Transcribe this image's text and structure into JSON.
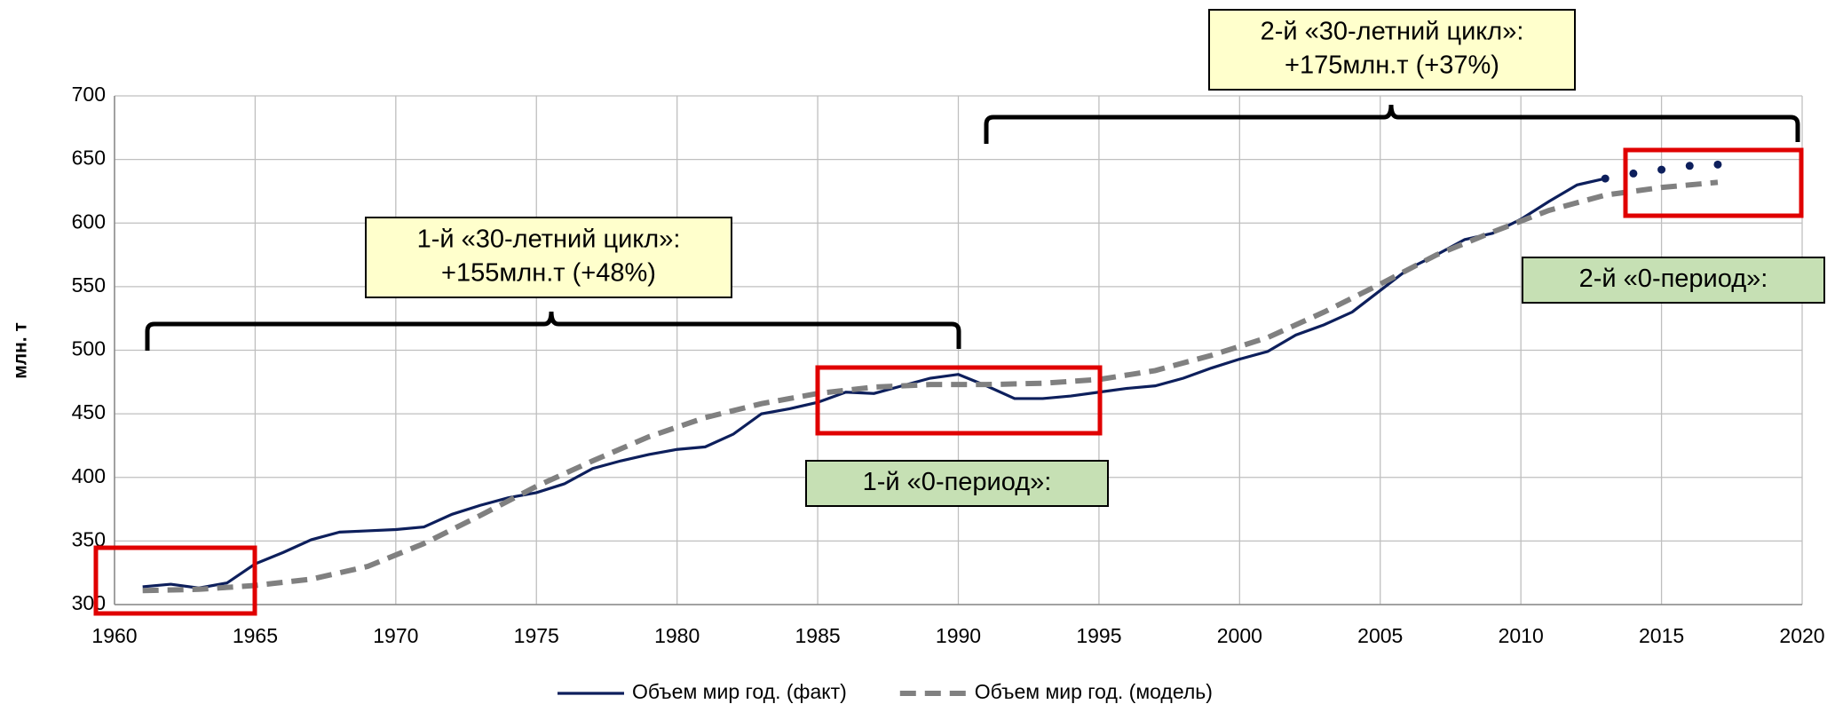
{
  "chart_data": {
    "type": "line",
    "ylabel": "млн. т",
    "xlim": [
      1960,
      2020
    ],
    "xticks": [
      1960,
      1965,
      1970,
      1975,
      1980,
      1985,
      1990,
      1995,
      2000,
      2005,
      2010,
      2015,
      2020
    ],
    "ylim": [
      300,
      700
    ],
    "yticks": [
      300,
      350,
      400,
      450,
      500,
      550,
      600,
      650,
      700
    ],
    "grid": true,
    "legend": "bottom",
    "series": [
      {
        "name": "Объем мир год. (факт)",
        "color": "#0d1f5c",
        "style": "solid",
        "x": [
          1961,
          1962,
          1963,
          1964,
          1965,
          1966,
          1967,
          1968,
          1969,
          1970,
          1971,
          1972,
          1973,
          1974,
          1975,
          1976,
          1977,
          1978,
          1979,
          1980,
          1981,
          1982,
          1983,
          1984,
          1985,
          1986,
          1987,
          1988,
          1989,
          1990,
          1991,
          1992,
          1993,
          1994,
          1995,
          1996,
          1997,
          1998,
          1999,
          2000,
          2001,
          2002,
          2003,
          2004,
          2005,
          2006,
          2007,
          2008,
          2009,
          2010,
          2011,
          2012,
          2013
        ],
        "values": [
          314,
          316,
          313,
          317,
          332,
          341,
          351,
          357,
          358,
          359,
          361,
          371,
          378,
          384,
          388,
          395,
          407,
          413,
          418,
          422,
          424,
          434,
          450,
          454,
          459,
          467,
          466,
          472,
          478,
          481,
          472,
          462,
          462,
          464,
          467,
          470,
          472,
          478,
          486,
          493,
          499,
          512,
          520,
          530,
          547,
          564,
          575,
          587,
          592,
          603,
          617,
          630,
          635
        ]
      },
      {
        "name": "Объем мир год. (модель)",
        "color": "#808080",
        "style": "dashed",
        "x": [
          1961,
          1963,
          1965,
          1967,
          1969,
          1971,
          1973,
          1975,
          1977,
          1979,
          1981,
          1983,
          1985,
          1987,
          1989,
          1991,
          1993,
          1995,
          1997,
          1999,
          2001,
          2003,
          2005,
          2007,
          2009,
          2011,
          2013,
          2015,
          2017
        ],
        "values": [
          311,
          312,
          315,
          320,
          330,
          348,
          370,
          393,
          413,
          432,
          447,
          458,
          466,
          471,
          473,
          473,
          474,
          477,
          484,
          496,
          510,
          530,
          552,
          575,
          593,
          610,
          622,
          628,
          632
        ]
      },
      {
        "color": "#0d1f5c",
        "style": "dots",
        "x": [
          2013,
          2014,
          2015,
          2016,
          2017
        ],
        "values": [
          635,
          639,
          642,
          645,
          646
        ]
      }
    ],
    "annotations": [
      {
        "lines": [
          "1-й «30-летний цикл»:",
          "+155млн.т (+48%)"
        ],
        "color": "#ffffcc"
      },
      {
        "lines": [
          "2-й «30-летний цикл»:",
          "+175млн.т (+37%)"
        ],
        "color": "#ffffcc"
      },
      {
        "lines": [
          "1-й «0-период»:"
        ],
        "color": "#c6e0b4"
      },
      {
        "lines": [
          "2-й «0-период»:"
        ],
        "color": "#c6e0b4"
      }
    ]
  }
}
